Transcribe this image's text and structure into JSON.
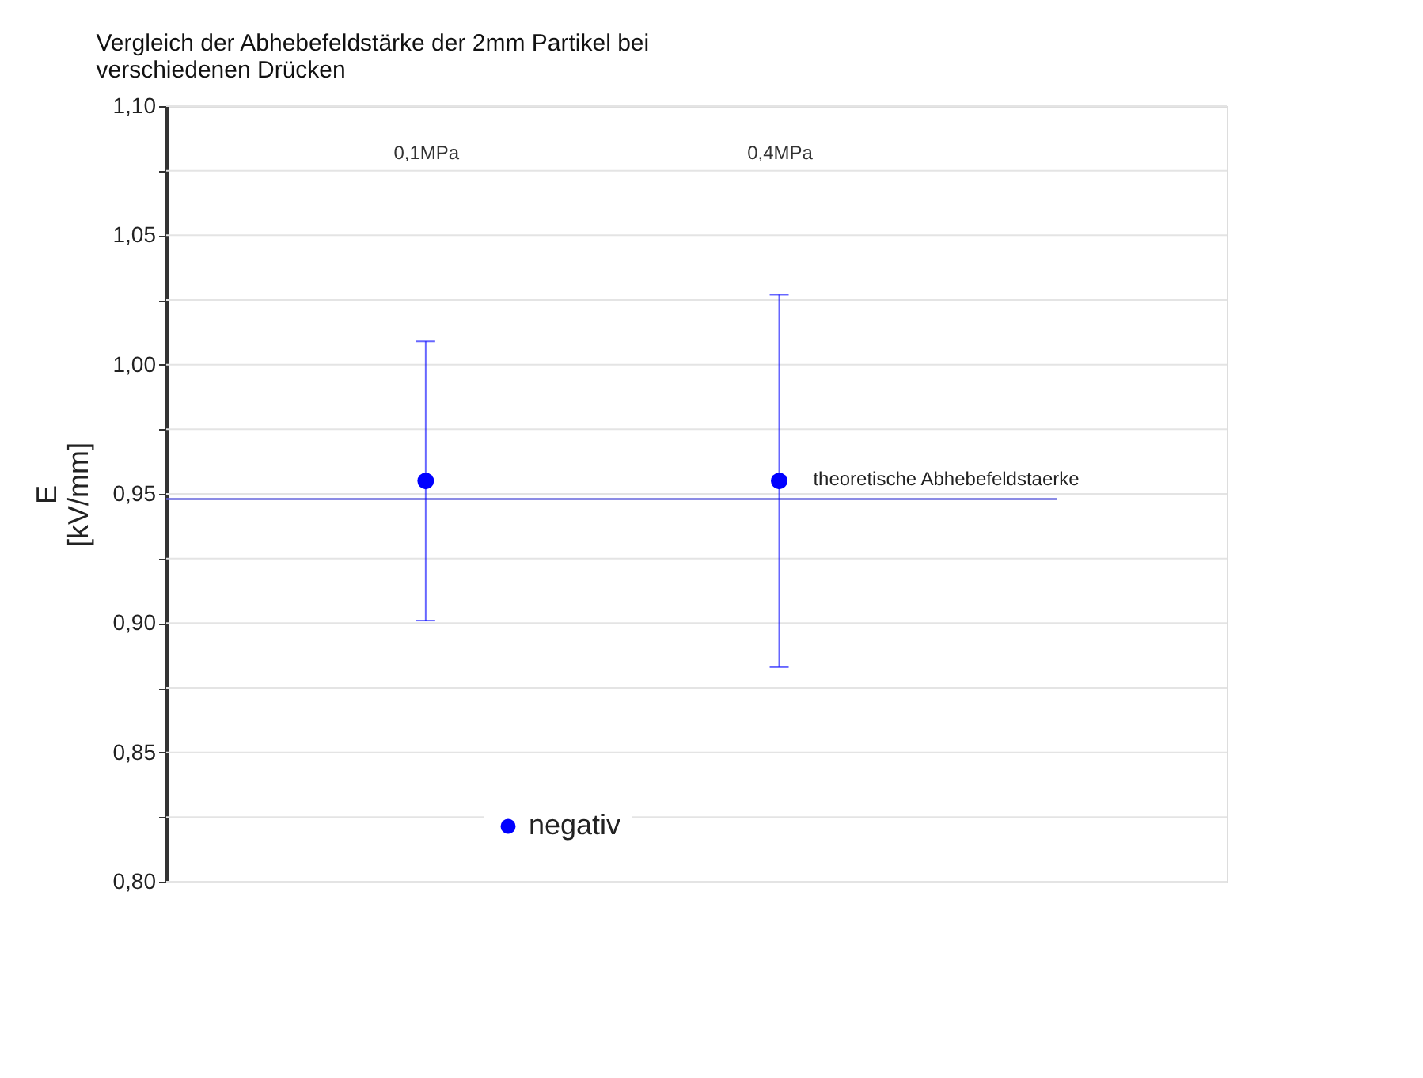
{
  "chart_data": {
    "type": "scatter",
    "title": [
      "Vergleich der Abhebefeldstärke der 2mm Partikel bei",
      "verschiedenen Drücken"
    ],
    "ylabel": [
      "E",
      "[kV/mm]"
    ],
    "categories": [
      "0,1MPa",
      "0,4MPa"
    ],
    "series": [
      {
        "name": "negativ",
        "color": "#0000ff",
        "values": [
          0.955,
          0.955
        ],
        "errors": [
          [
            0.901,
            1.009
          ],
          [
            0.883,
            1.027
          ]
        ]
      }
    ],
    "ylim": [
      0.8,
      1.1
    ],
    "yticks": [
      {
        "value": 0.8,
        "label": "0,80"
      },
      {
        "value": 0.825,
        "label": null
      },
      {
        "value": 0.85,
        "label": "0,85"
      },
      {
        "value": 0.875,
        "label": null
      },
      {
        "value": 0.9,
        "label": "0,90"
      },
      {
        "value": 0.925,
        "label": null
      },
      {
        "value": 0.95,
        "label": "0,95"
      },
      {
        "value": 0.975,
        "label": null
      },
      {
        "value": 1.0,
        "label": "1,00"
      },
      {
        "value": 1.025,
        "label": null
      },
      {
        "value": 1.05,
        "label": "1,05"
      },
      {
        "value": 1.075,
        "label": null
      },
      {
        "value": 1.1,
        "label": "1,10"
      }
    ],
    "ref_lines": [
      {
        "axis": "y",
        "value": 0.948,
        "label": "theoretische Abhebefeldstaerke",
        "color": "#6666dd"
      }
    ],
    "grid": "y",
    "legend": "bottom",
    "marker": "circle"
  }
}
